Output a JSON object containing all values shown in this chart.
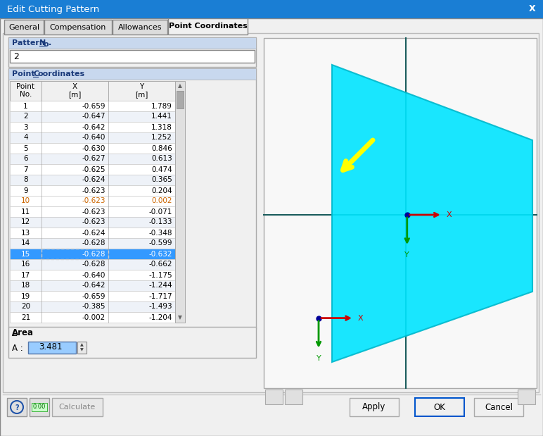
{
  "title": "Edit Cutting Pattern",
  "tabs": [
    "General",
    "Compensation",
    "Allowances",
    "Point Coordinates"
  ],
  "active_tab": "Point Coordinates",
  "pattern_no_label": "Pattern No.",
  "pattern_no_value": "2",
  "table_data": [
    [
      1,
      -0.659,
      1.789
    ],
    [
      2,
      -0.647,
      1.441
    ],
    [
      3,
      -0.642,
      1.318
    ],
    [
      4,
      -0.64,
      1.252
    ],
    [
      5,
      -0.63,
      0.846
    ],
    [
      6,
      -0.627,
      0.613
    ],
    [
      7,
      -0.625,
      0.474
    ],
    [
      8,
      -0.624,
      0.365
    ],
    [
      9,
      -0.623,
      0.204
    ],
    [
      10,
      -0.623,
      0.002
    ],
    [
      11,
      -0.623,
      -0.071
    ],
    [
      12,
      -0.623,
      -0.133
    ],
    [
      13,
      -0.624,
      -0.348
    ],
    [
      14,
      -0.628,
      -0.599
    ],
    [
      15,
      -0.628,
      -0.632
    ],
    [
      16,
      -0.628,
      -0.662
    ],
    [
      17,
      -0.64,
      -1.175
    ],
    [
      18,
      -0.642,
      -1.244
    ],
    [
      19,
      -0.659,
      -1.717
    ],
    [
      20,
      -0.385,
      -1.493
    ],
    [
      21,
      -0.002,
      -1.204
    ]
  ],
  "highlighted_row": 15,
  "area_value": "3.481",
  "bg_color": "#f0f0f0",
  "title_bar_color": "#1a7ed4",
  "title_text_color": "#ffffff",
  "table_header_bg": "#d6e4f7",
  "table_row_even": "#eef2f8",
  "table_row_odd": "#ffffff",
  "table_highlight_bg": "#3399ff",
  "table_highlight_fg": "#ffffff",
  "cyan_color": "#00e5ff",
  "cyan_edge": "#00b8cc",
  "viewport_bg": "#f8f8f8",
  "grid_color": "#1a5c5c",
  "axis_x_color": "#cc0000",
  "axis_y_color": "#009900",
  "axis_dot_color": "#000099",
  "row_10_color": "#cc6600",
  "section_header_bg": "#c8d8ee",
  "section_header_text": "#1a3a7a"
}
